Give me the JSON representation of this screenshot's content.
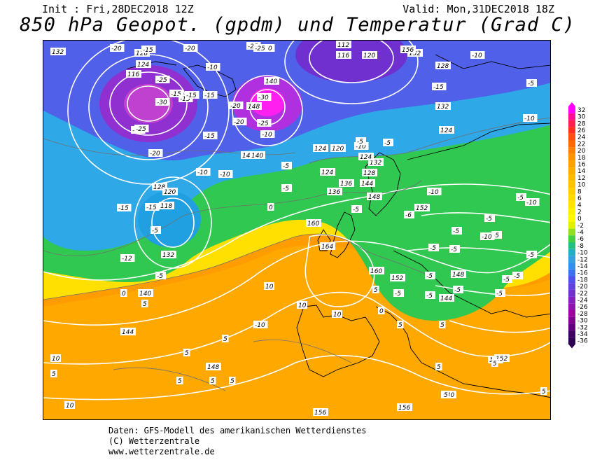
{
  "header": {
    "init": "Init : Fri,28DEC2018 12Z",
    "valid": "Valid: Mon,31DEC2018 18Z",
    "title": "850 hPa Geopot. (gpdm) und Temperatur (Grad C)"
  },
  "footer": {
    "line1": "Daten: GFS-Modell des amerikanischen Wetterdienstes",
    "line2": "(C) Wetterzentrale",
    "line3": "www.wetterzentrale.de"
  },
  "color_scale": {
    "values": [
      "32",
      "30",
      "28",
      "26",
      "24",
      "22",
      "20",
      "18",
      "16",
      "14",
      "12",
      "10",
      "8",
      "6",
      "4",
      "2",
      "0",
      "-2",
      "-4",
      "-6",
      "-8",
      "-10",
      "-12",
      "-14",
      "-16",
      "-18",
      "-20",
      "-22",
      "-24",
      "-26",
      "-28",
      "-30",
      "-32",
      "-34",
      "-36"
    ],
    "colors": [
      "#ff00ff",
      "#ff1090",
      "#ff2050",
      "#ff3020",
      "#ff5010",
      "#ff6a00",
      "#ff8000",
      "#ff9400",
      "#ffa000",
      "#ffae00",
      "#ffba00",
      "#ffc400",
      "#ffd000",
      "#ffdc00",
      "#ffe600",
      "#fff000",
      "#fff800",
      "#e0f000",
      "#90e020",
      "#40d040",
      "#20c080",
      "#20b0c0",
      "#30a0e0",
      "#3090f0",
      "#4070f0",
      "#5050f0",
      "#6040e0",
      "#7030d0",
      "#8020c0",
      "#9010b0",
      "#a000a0",
      "#800090",
      "#600080",
      "#400060",
      "#300050"
    ]
  },
  "map_labels": {
    "geopotential": [
      "132",
      "128",
      "124",
      "116",
      "112",
      "116",
      "120",
      "128",
      "132",
      "140",
      "148",
      "144",
      "140",
      "124",
      "120",
      "124",
      "128",
      "132",
      "136",
      "144",
      "148",
      "156",
      "160",
      "164",
      "152",
      "160",
      "152",
      "144",
      "148",
      "152",
      "156",
      "156",
      "140",
      "136",
      "132",
      "140",
      "144",
      "148",
      "152",
      "124",
      "128",
      "118",
      "120",
      "124",
      "132"
    ],
    "temperature": [
      "-20",
      "-15",
      "-25",
      "-20",
      "-25",
      "-20",
      "-30",
      "-20",
      "-25",
      "-20",
      "-15",
      "-15",
      "-10",
      "-15",
      "-15",
      "-25",
      "-30",
      "-25",
      "-15",
      "-20",
      "-20",
      "-10",
      "-10",
      "-15",
      "-10",
      "-5",
      "-5",
      "-10",
      "-5",
      "-5",
      "0",
      "-5",
      "-15",
      "-5",
      "-12",
      "-5",
      "0",
      "5",
      "5",
      "5",
      "5",
      "5",
      "10",
      "10",
      "10",
      "5",
      "5",
      "5",
      "5",
      "5",
      "10",
      "5",
      "10",
      "5",
      "-10",
      "-10",
      "-5",
      "-15",
      "-10",
      "-10",
      "-5",
      "-5",
      "-5",
      "-5",
      "-5",
      "-10",
      "-5",
      "-5",
      "-10",
      "-5",
      "-5",
      "-5",
      "-5",
      "-5",
      "-5",
      "-5",
      "0",
      "5",
      "5",
      "-6"
    ]
  }
}
